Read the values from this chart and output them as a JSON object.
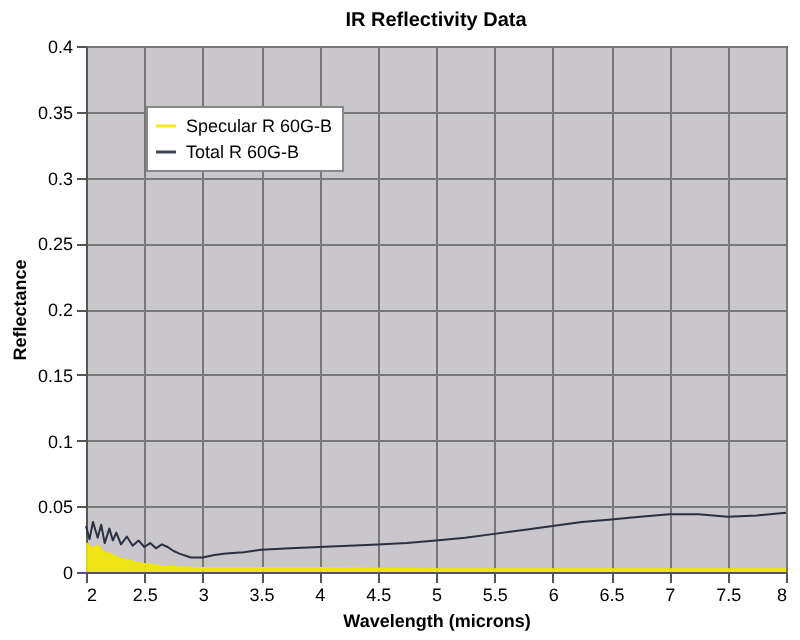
{
  "chart_data": {
    "type": "line",
    "title": "IR Reflectivity Data",
    "xlabel": "Wavelength (microns)",
    "ylabel": "Reflectance",
    "xlim": [
      2,
      8
    ],
    "xticks": [
      2,
      2.5,
      3,
      3.5,
      4,
      4.5,
      5,
      5.5,
      6,
      6.5,
      7,
      7.5,
      8
    ],
    "ylim": [
      0,
      0.4
    ],
    "yticks": [
      0,
      0.05,
      0.1,
      0.15,
      0.2,
      0.25,
      0.3,
      0.35,
      0.4
    ],
    "grid": true,
    "legend": "top left",
    "marker": "none",
    "line_style": "solid",
    "series": [
      {
        "name": "Specular R 60G-B",
        "type": "area",
        "color": "#f2e600",
        "x": [
          2.0,
          2.05,
          2.1,
          2.15,
          2.2,
          2.3,
          2.4,
          2.5,
          2.7,
          3.0,
          3.5,
          4.0,
          5.0,
          6.0,
          7.0,
          8.0
        ],
        "values": [
          0.022,
          0.018,
          0.02,
          0.015,
          0.014,
          0.01,
          0.008,
          0.006,
          0.004,
          0.003,
          0.003,
          0.003,
          0.002,
          0.002,
          0.002,
          0.002
        ]
      },
      {
        "name": "Total R 60G-B",
        "color": "#2a3040",
        "x": [
          2.0,
          2.03,
          2.06,
          2.1,
          2.13,
          2.16,
          2.2,
          2.23,
          2.26,
          2.3,
          2.35,
          2.4,
          2.45,
          2.5,
          2.55,
          2.6,
          2.65,
          2.7,
          2.75,
          2.8,
          2.9,
          3.0,
          3.1,
          3.2,
          3.35,
          3.5,
          3.75,
          4.0,
          4.25,
          4.5,
          4.75,
          5.0,
          5.25,
          5.5,
          5.75,
          6.0,
          6.25,
          6.5,
          6.75,
          7.0,
          7.25,
          7.5,
          7.75,
          8.0
        ],
        "values": [
          0.035,
          0.025,
          0.038,
          0.026,
          0.036,
          0.022,
          0.033,
          0.024,
          0.03,
          0.021,
          0.027,
          0.02,
          0.024,
          0.019,
          0.022,
          0.018,
          0.021,
          0.019,
          0.016,
          0.014,
          0.011,
          0.011,
          0.013,
          0.014,
          0.015,
          0.017,
          0.018,
          0.019,
          0.02,
          0.021,
          0.022,
          0.024,
          0.026,
          0.029,
          0.032,
          0.035,
          0.038,
          0.04,
          0.042,
          0.044,
          0.044,
          0.042,
          0.043,
          0.045
        ]
      }
    ]
  }
}
